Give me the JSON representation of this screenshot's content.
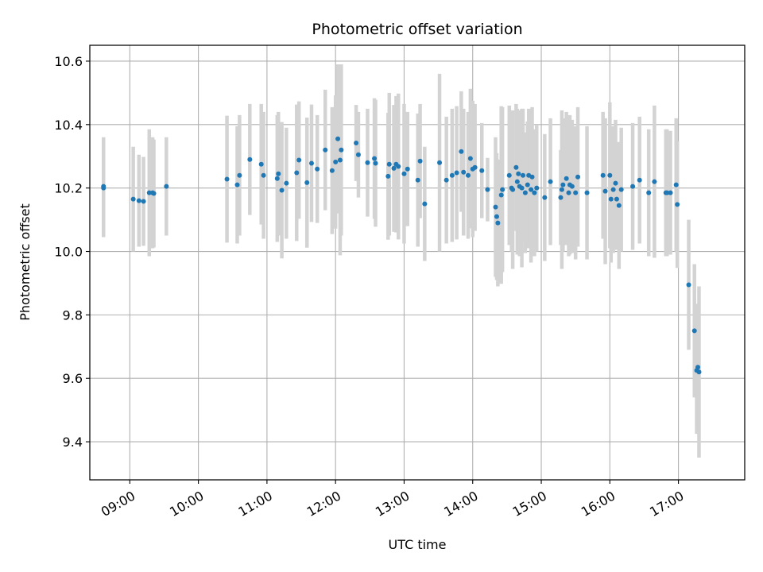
{
  "chart_data": {
    "type": "scatter",
    "title": "Photometric offset variation",
    "xlabel": "UTC time",
    "ylabel": "Photometric offset",
    "x_ticks": [
      "09:00",
      "10:00",
      "11:00",
      "12:00",
      "13:00",
      "14:00",
      "15:00",
      "16:00",
      "17:00"
    ],
    "x_tick_hours": [
      9,
      10,
      11,
      12,
      13,
      14,
      15,
      16,
      17
    ],
    "y_ticks": [
      "9.4",
      "9.6",
      "9.8",
      "10.0",
      "10.2",
      "10.4",
      "10.6"
    ],
    "y_tick_values": [
      9.4,
      9.6,
      9.8,
      10.0,
      10.2,
      10.4,
      10.6
    ],
    "xlim": [
      "08:25",
      "17:58"
    ],
    "ylim": [
      9.28,
      10.65
    ],
    "grid": true,
    "colors": {
      "point": "#1f77b4",
      "errorbar": "#d3d3d3",
      "grid": "#b0b0b0"
    },
    "x": [
      "08:37",
      "08:37",
      "09:03",
      "09:08",
      "09:12",
      "09:17",
      "09:21",
      "09:20",
      "09:32",
      "10:25",
      "10:34",
      "10:36",
      "10:45",
      "10:55",
      "10:57",
      "11:10",
      "11:09",
      "11:13",
      "11:17",
      "11:26",
      "11:28",
      "11:35",
      "11:39",
      "11:44",
      "11:51",
      "11:57",
      "12:00",
      "12:02",
      "12:04",
      "12:05",
      "12:18",
      "12:20",
      "12:28",
      "12:34",
      "12:35",
      "12:46",
      "12:47",
      "12:51",
      "12:53",
      "12:55",
      "13:00",
      "13:03",
      "13:12",
      "13:14",
      "13:18",
      "13:31",
      "13:37",
      "13:42",
      "13:46",
      "13:50",
      "13:52",
      "13:56",
      "13:58",
      "14:00",
      "14:02",
      "14:08",
      "14:13",
      "14:20",
      "14:21",
      "14:22",
      "14:25",
      "14:26",
      "14:32",
      "14:34",
      "14:35",
      "14:38",
      "14:39",
      "14:40",
      "14:41",
      "14:43",
      "14:44",
      "14:46",
      "14:48",
      "14:49",
      "14:51",
      "14:52",
      "14:54",
      "14:56",
      "15:03",
      "15:08",
      "15:17",
      "15:18",
      "15:19",
      "15:22",
      "15:24",
      "15:25",
      "15:27",
      "15:30",
      "15:32",
      "15:40",
      "15:54",
      "15:56",
      "16:00",
      "16:01",
      "16:03",
      "16:05",
      "16:06",
      "16:08",
      "16:10",
      "16:20",
      "16:26",
      "16:34",
      "16:39",
      "16:49",
      "16:50",
      "16:53",
      "16:58",
      "16:59",
      "17:09",
      "17:14",
      "17:16",
      "17:17",
      "17:18"
    ],
    "y": [
      10.2,
      10.205,
      10.165,
      10.16,
      10.158,
      10.185,
      10.183,
      10.185,
      10.205,
      10.228,
      10.21,
      10.24,
      10.29,
      10.275,
      10.24,
      10.245,
      10.23,
      10.193,
      10.215,
      10.248,
      10.288,
      10.217,
      10.278,
      10.26,
      10.32,
      10.255,
      10.282,
      10.355,
      10.288,
      10.32,
      10.342,
      10.305,
      10.28,
      10.293,
      10.278,
      10.237,
      10.275,
      10.262,
      10.275,
      10.268,
      10.245,
      10.26,
      10.225,
      10.285,
      10.15,
      10.28,
      10.225,
      10.24,
      10.248,
      10.315,
      10.25,
      10.24,
      10.293,
      10.26,
      10.265,
      10.255,
      10.195,
      10.14,
      10.11,
      10.09,
      10.178,
      10.195,
      10.24,
      10.2,
      10.195,
      10.265,
      10.22,
      10.245,
      10.205,
      10.2,
      10.24,
      10.185,
      10.21,
      10.24,
      10.195,
      10.235,
      10.185,
      10.2,
      10.17,
      10.22,
      10.17,
      10.195,
      10.21,
      10.23,
      10.185,
      10.21,
      10.205,
      10.185,
      10.235,
      10.185,
      10.24,
      10.19,
      10.24,
      10.165,
      10.195,
      10.215,
      10.165,
      10.145,
      10.195,
      10.205,
      10.225,
      10.185,
      10.22,
      10.185,
      10.185,
      10.185,
      10.21,
      10.148,
      9.895,
      9.75,
      9.625,
      9.635,
      9.62
    ],
    "err": [
      0.155,
      0.155,
      0.165,
      0.145,
      0.14,
      0.2,
      0.17,
      0.175,
      0.155,
      0.2,
      0.185,
      0.19,
      0.175,
      0.19,
      0.2,
      0.195,
      0.2,
      0.215,
      0.175,
      0.215,
      0.185,
      0.205,
      0.185,
      0.17,
      0.19,
      0.2,
      0.21,
      0.235,
      0.3,
      0.27,
      0.12,
      0.135,
      0.17,
      0.19,
      0.2,
      0.2,
      0.225,
      0.2,
      0.215,
      0.23,
      0.22,
      0.18,
      0.21,
      0.18,
      0.18,
      0.28,
      0.2,
      0.21,
      0.21,
      0.19,
      0.2,
      0.2,
      0.22,
      0.215,
      0.2,
      0.15,
      0.1,
      0.22,
      0.2,
      0.2,
      0.28,
      0.26,
      0.22,
      0.2,
      0.25,
      0.2,
      0.23,
      0.2,
      0.22,
      0.25,
      0.21,
      0.19,
      0.2,
      0.21,
      0.23,
      0.22,
      0.2,
      0.2,
      0.2,
      0.2,
      0.15,
      0.25,
      0.21,
      0.21,
      0.2,
      0.22,
      0.21,
      0.21,
      0.22,
      0.21,
      0.2,
      0.23,
      0.23,
      0.2,
      0.2,
      0.2,
      0.16,
      0.2,
      0.195,
      0.2,
      0.2,
      0.2,
      0.24,
      0.2,
      0.2,
      0.195,
      0.21,
      0.2,
      0.205,
      0.21,
      0.2,
      0.2,
      0.27
    ]
  }
}
